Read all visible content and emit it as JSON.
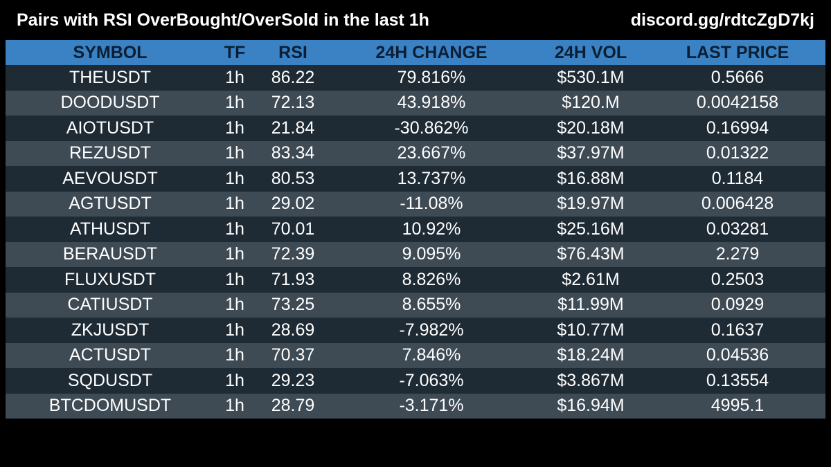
{
  "header": {
    "title": "Pairs with RSI OverBought/OverSold in the last 1h",
    "link": "discord.gg/rdtcZgD7kj"
  },
  "colors": {
    "background": "#000000",
    "header_row": "#3a82c4",
    "header_text": "#0c1e33",
    "row_dark": "#1e2a34",
    "row_light": "#3e4a54",
    "text": "#ffffff"
  },
  "table": {
    "columns": [
      "SYMBOL",
      "TF",
      "RSI",
      "24H CHANGE",
      "24H VOL",
      "LAST PRICE"
    ],
    "rows": [
      {
        "symbol": "THEUSDT",
        "tf": "1h",
        "rsi": "86.22",
        "change": "79.816%",
        "vol": "$530.1M",
        "price": "0.5666"
      },
      {
        "symbol": "DOODUSDT",
        "tf": "1h",
        "rsi": "72.13",
        "change": "43.918%",
        "vol": "$120.M",
        "price": "0.0042158"
      },
      {
        "symbol": "AIOTUSDT",
        "tf": "1h",
        "rsi": "21.84",
        "change": "-30.862%",
        "vol": "$20.18M",
        "price": "0.16994"
      },
      {
        "symbol": "REZUSDT",
        "tf": "1h",
        "rsi": "83.34",
        "change": "23.667%",
        "vol": "$37.97M",
        "price": "0.01322"
      },
      {
        "symbol": "AEVOUSDT",
        "tf": "1h",
        "rsi": "80.53",
        "change": "13.737%",
        "vol": "$16.88M",
        "price": "0.1184"
      },
      {
        "symbol": "AGTUSDT",
        "tf": "1h",
        "rsi": "29.02",
        "change": "-11.08%",
        "vol": "$19.97M",
        "price": "0.006428"
      },
      {
        "symbol": "ATHUSDT",
        "tf": "1h",
        "rsi": "70.01",
        "change": "10.92%",
        "vol": "$25.16M",
        "price": "0.03281"
      },
      {
        "symbol": "BERAUSDT",
        "tf": "1h",
        "rsi": "72.39",
        "change": "9.095%",
        "vol": "$76.43M",
        "price": "2.279"
      },
      {
        "symbol": "FLUXUSDT",
        "tf": "1h",
        "rsi": "71.93",
        "change": "8.826%",
        "vol": "$2.61M",
        "price": "0.2503"
      },
      {
        "symbol": "CATIUSDT",
        "tf": "1h",
        "rsi": "73.25",
        "change": "8.655%",
        "vol": "$11.99M",
        "price": "0.0929"
      },
      {
        "symbol": "ZKJUSDT",
        "tf": "1h",
        "rsi": "28.69",
        "change": "-7.982%",
        "vol": "$10.77M",
        "price": "0.1637"
      },
      {
        "symbol": "ACTUSDT",
        "tf": "1h",
        "rsi": "70.37",
        "change": "7.846%",
        "vol": "$18.24M",
        "price": "0.04536"
      },
      {
        "symbol": "SQDUSDT",
        "tf": "1h",
        "rsi": "29.23",
        "change": "-7.063%",
        "vol": "$3.867M",
        "price": "0.13554"
      },
      {
        "symbol": "BTCDOMUSDT",
        "tf": "1h",
        "rsi": "28.79",
        "change": "-3.171%",
        "vol": "$16.94M",
        "price": "4995.1"
      }
    ]
  }
}
